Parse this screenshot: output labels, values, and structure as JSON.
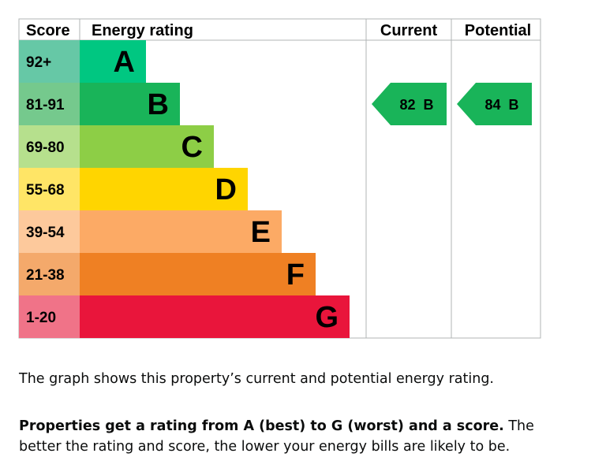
{
  "headers": {
    "score": "Score",
    "energy_rating": "Energy rating",
    "current": "Current",
    "potential": "Potential"
  },
  "chart_data": {
    "type": "bar",
    "bands": [
      {
        "letter": "A",
        "range": "92+",
        "color": "#00c781",
        "range_bg": "#66c8a6"
      },
      {
        "letter": "B",
        "range": "81-91",
        "color": "#19b459",
        "range_bg": "#75c98d"
      },
      {
        "letter": "C",
        "range": "69-80",
        "color": "#8dce46",
        "range_bg": "#b6e08d"
      },
      {
        "letter": "D",
        "range": "55-68",
        "color": "#ffd500",
        "range_bg": "#ffe566"
      },
      {
        "letter": "E",
        "range": "39-54",
        "color": "#fcaa65",
        "range_bg": "#fdc99c"
      },
      {
        "letter": "F",
        "range": "21-38",
        "color": "#ef8023",
        "range_bg": "#f4a96b"
      },
      {
        "letter": "G",
        "range": "1-20",
        "color": "#e9153b",
        "range_bg": "#f07388"
      }
    ],
    "current": {
      "score": 82,
      "band": "B",
      "label": "82  B"
    },
    "potential": {
      "score": 84,
      "band": "B",
      "label": "84  B"
    }
  },
  "text": {
    "caption1": "The graph shows this property’s current and potential energy rating.",
    "caption2_bold": "Properties get a rating from A (best) to G (worst) and a score.",
    "caption2_rest": " The better the rating and score, the lower your energy bills are likely to be."
  }
}
